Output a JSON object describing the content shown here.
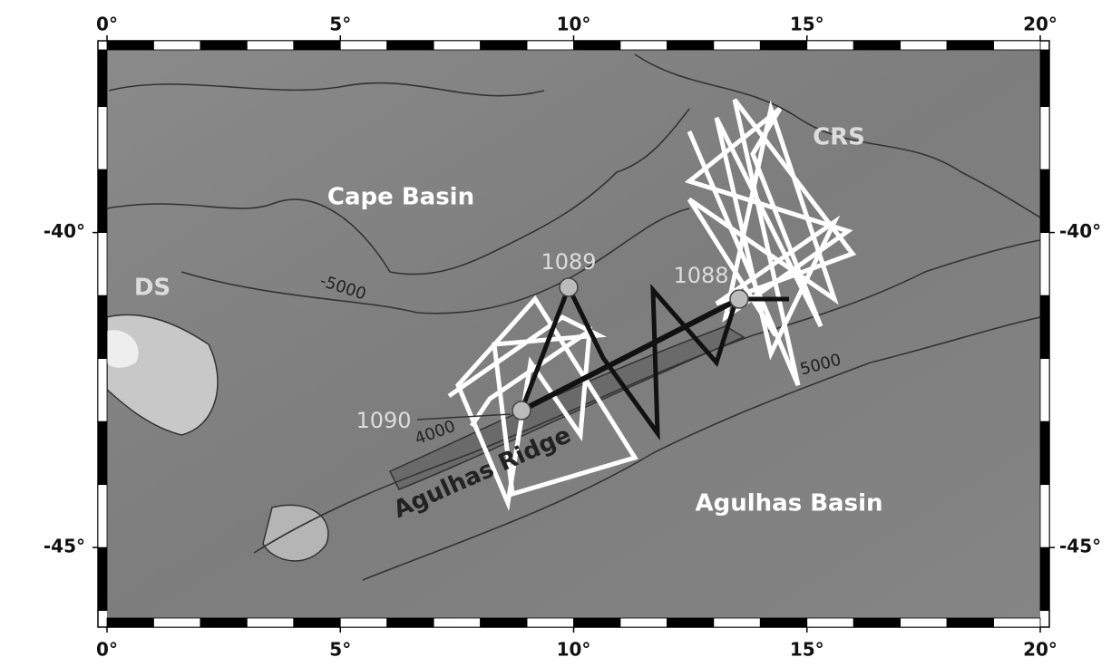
{
  "map": {
    "xlim": [
      0,
      20
    ],
    "ylim": [
      -46.12,
      -37.1
    ],
    "xticks": [
      {
        "value": 0,
        "label": "0°"
      },
      {
        "value": 5,
        "label": "5°"
      },
      {
        "value": 10,
        "label": "10°"
      },
      {
        "value": 15,
        "label": "15°"
      },
      {
        "value": 20,
        "label": "20°"
      }
    ],
    "yticks": [
      {
        "value": -40,
        "label": "-40°"
      },
      {
        "value": -45,
        "label": "-45°"
      }
    ],
    "places": [
      "Cape Basin",
      "DS",
      "CRS",
      "Agulhas Ridge",
      "Agulhas Basin"
    ],
    "sites": [
      "1089",
      "1088",
      "1090"
    ],
    "contour_labels": [
      "-5000",
      "4000",
      "5000"
    ]
  }
}
